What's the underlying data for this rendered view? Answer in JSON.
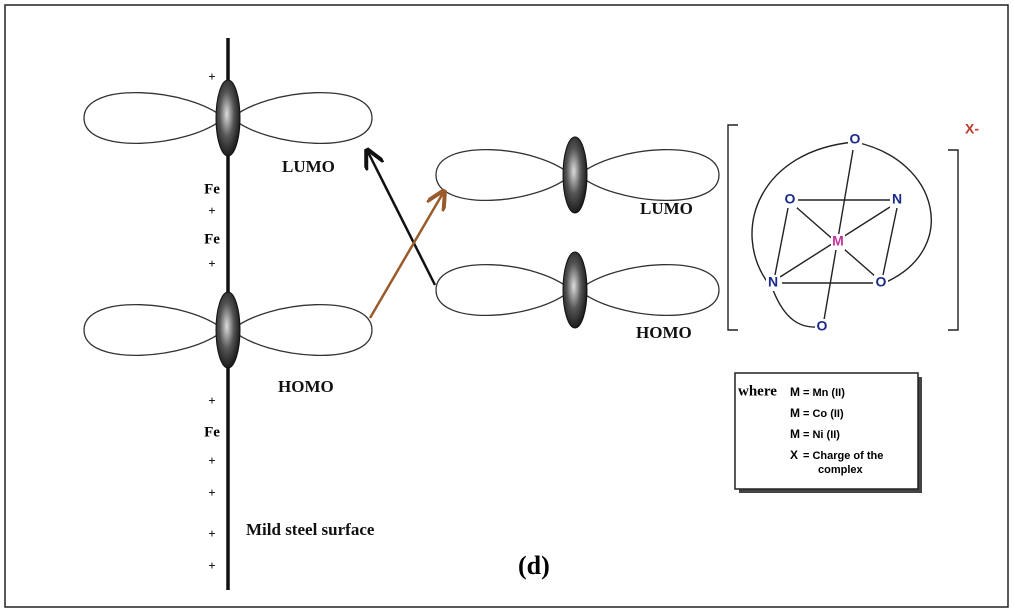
{
  "surface": {
    "label": "Mild steel surface",
    "charges": [
      "+",
      "Fe",
      "+",
      "Fe",
      "+",
      "+",
      "Fe",
      "+",
      "+",
      "+",
      "+"
    ]
  },
  "orbitals": {
    "surface_lumo": "LUMO",
    "surface_homo": "HOMO",
    "inhibitor_lumo": "LUMO",
    "inhibitor_homo": "HOMO"
  },
  "complex": {
    "atoms": [
      "O",
      "O",
      "N",
      "M",
      "N",
      "O",
      "O"
    ],
    "charge": "X-"
  },
  "legend": {
    "lead": "where",
    "entries": [
      {
        "symbol": "M",
        "text": "= Mn (II)"
      },
      {
        "symbol": "M",
        "text": "= Co (II)"
      },
      {
        "symbol": "M",
        "text": "= Ni (II)"
      },
      {
        "symbol": "X",
        "text": "= Charge of the complex"
      }
    ]
  },
  "caption": "(d)"
}
